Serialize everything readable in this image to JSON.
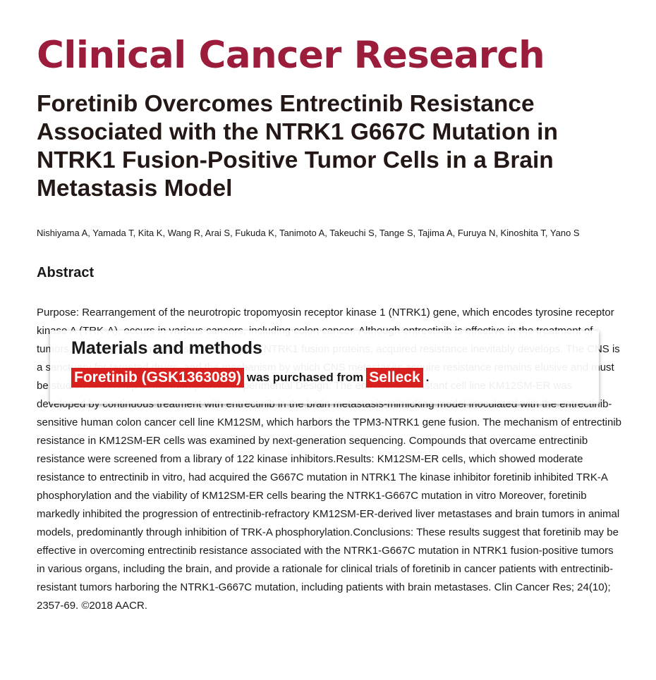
{
  "journal": {
    "name": "Clinical Cancer Research",
    "color": "#9b1c3b"
  },
  "article": {
    "title": "Foretinib Overcomes Entrectinib Resistance Associated with the NTRK1 G667C Mutation in NTRK1 Fusion-Positive Tumor Cells in a Brain Metastasis Model",
    "authors": "Nishiyama A, Yamada T, Kita K, Wang R, Arai S, Fukuda K, Tanimoto A, Takeuchi S, Tange S, Tajima A, Furuya N, Kinoshita T, Yano S",
    "abstract_heading": "Abstract",
    "abstract_text": "Purpose: Rearrangement of the neurotropic tropomyosin receptor kinase 1 (NTRK1) gene, which encodes tyrosine receptor kinase A (TRK-A), occurs in various cancers, including colon cancer. Although entrectinib is effective in the treatment of tumors, including brain metastases that express NTRK1 fusion proteins, acquired resistance inevitably develops. The CNS is a sanctuary for targeted drugs, and the mechanism by which CNS metastases acquire resistance remains elusive and must be studied to develop better therapeutics.Experimental Design: The entrectinib-resistant cell line KM12SM-ER was developed by continuous treatment with entrectinib in the brain metastasis-mimicking model inoculated with the entrectinib-sensitive human colon cancer cell line KM12SM, which harbors the TPM3-NTRK1 gene fusion. The mechanism of entrectinib resistance in KM12SM-ER cells was examined by next-generation sequencing. Compounds that overcame entrectinib resistance were screened from a library of 122 kinase inhibitors.Results: KM12SM-ER cells, which showed moderate resistance to entrectinib in vitro, had acquired the G667C mutation in NTRK1 The kinase inhibitor foretinib inhibited TRK-A phosphorylation and the viability of KM12SM-ER cells bearing the NTRK1-G667C mutation in vitro Moreover, foretinib markedly inhibited the progression of entrectinib-refractory KM12SM-ER-derived liver metastases and brain tumors in animal models, predominantly through inhibition of TRK-A phosphorylation.Conclusions: These results suggest that foretinib may be effective in overcoming entrectinib resistance associated with the NTRK1-G667C mutation in NTRK1 fusion-positive tumors in various organs, including the brain, and provide a rationale for clinical trials of foretinib in cancer patients with entrectinib-resistant tumors harboring the NTRK1-G667C mutation, including patients with brain metastases. Clin Cancer Res; 24(10); 2357-69. ©2018 AACR."
  },
  "overlay": {
    "heading": "Materials and methods",
    "compound": "Foretinib (GSK1363089)",
    "middle_text": "was purchased from",
    "supplier": "Selleck",
    "end_text": ".",
    "highlight_color": "#d8201e"
  }
}
